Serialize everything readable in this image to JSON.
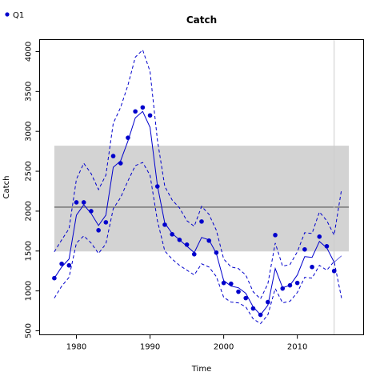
{
  "chart_data": {
    "type": "line",
    "title": "Catch",
    "xlabel": "Time",
    "ylabel": "Catch",
    "xlim": [
      1975,
      2019
    ],
    "ylim": [
      450,
      4150
    ],
    "x_ticks": [
      1980,
      1990,
      2000,
      2010
    ],
    "x_tick_labels": [
      "1980",
      "1990",
      "2000",
      "2010"
    ],
    "y_ticks": [
      500,
      1000,
      1500,
      2000,
      2500,
      3000,
      3500,
      4000
    ],
    "y_tick_labels": [
      "500",
      "1000",
      "1500",
      "2000",
      "2500",
      "3000",
      "3500",
      "4000"
    ],
    "grid": false,
    "legend": {
      "position": "top-left",
      "entries": [
        "Q1"
      ]
    },
    "colors": {
      "series": "#0000cc",
      "band": "#d3d3d3",
      "mean_line": "#555555",
      "marker_line": "#cccccc"
    },
    "reference_band": {
      "x": [
        1977,
        2017
      ],
      "y": [
        1495,
        2820
      ]
    },
    "mean_line": {
      "x": [
        1977,
        2017
      ],
      "y": 2050
    },
    "vertical_marker_x": 2015,
    "observed": {
      "name": "Q1",
      "x": [
        1977,
        1978,
        1979,
        1980,
        1981,
        1982,
        1983,
        1984,
        1985,
        1986,
        1987,
        1988,
        1989,
        1990,
        1991,
        1992,
        1993,
        1994,
        1995,
        1996,
        1997,
        1998,
        1999,
        2000,
        2001,
        2002,
        2003,
        2004,
        2005,
        2006,
        2007,
        2008,
        2009,
        2010,
        2011,
        2012,
        2013,
        2014,
        2015
      ],
      "y": [
        1160,
        1340,
        1320,
        2110,
        2110,
        2000,
        1760,
        1860,
        2690,
        2600,
        2920,
        3250,
        3300,
        3200,
        2310,
        1830,
        1710,
        1640,
        1580,
        1460,
        1870,
        1630,
        1480,
        1100,
        1090,
        990,
        910,
        780,
        700,
        860,
        1700,
        1030,
        1070,
        1100,
        1520,
        1300,
        1680,
        1560,
        1250
      ]
    },
    "fit": {
      "x": [
        1977,
        1978,
        1979,
        1980,
        1981,
        1982,
        1983,
        1984,
        1985,
        1986,
        1987,
        1988,
        1989,
        1990,
        1991,
        1992,
        1993,
        1994,
        1995,
        1996,
        1997,
        1998,
        1999,
        2000,
        2001,
        2002,
        2003,
        2004,
        2005,
        2006,
        2007,
        2008,
        2009,
        2010,
        2011,
        2012,
        2013,
        2014,
        2015
      ],
      "y": [
        1160,
        1300,
        1400,
        1950,
        2080,
        1970,
        1820,
        1950,
        2550,
        2630,
        2880,
        3170,
        3250,
        3050,
        2320,
        1850,
        1720,
        1640,
        1560,
        1480,
        1670,
        1640,
        1470,
        1130,
        1060,
        1040,
        970,
        800,
        700,
        820,
        1280,
        1040,
        1070,
        1200,
        1430,
        1420,
        1620,
        1540,
        1360
      ]
    },
    "upper": {
      "x": [
        1977,
        1978,
        1979,
        1980,
        1981,
        1982,
        1983,
        1984,
        1985,
        1986,
        1987,
        1988,
        1989,
        1990,
        1991,
        1992,
        1993,
        1994,
        1995,
        1996,
        1997,
        1998,
        1999,
        2000,
        2001,
        2002,
        2003,
        2004,
        2005,
        2006,
        2007,
        2008,
        2009,
        2010,
        2011,
        2012,
        2013,
        2014,
        2015,
        2016
      ],
      "y": [
        1490,
        1640,
        1780,
        2400,
        2600,
        2470,
        2270,
        2450,
        3100,
        3300,
        3580,
        3930,
        4020,
        3750,
        2890,
        2310,
        2140,
        2040,
        1880,
        1810,
        2060,
        1960,
        1760,
        1400,
        1300,
        1280,
        1200,
        990,
        900,
        1090,
        1600,
        1310,
        1330,
        1490,
        1730,
        1720,
        1990,
        1880,
        1700,
        2270
      ]
    },
    "lower": {
      "x": [
        1977,
        1978,
        1979,
        1980,
        1981,
        1982,
        1983,
        1984,
        1985,
        1986,
        1987,
        1988,
        1989,
        1990,
        1991,
        1992,
        1993,
        1994,
        1995,
        1996,
        1997,
        1998,
        1999,
        2000,
        2001,
        2002,
        2003,
        2004,
        2005,
        2006,
        2007,
        2008,
        2009,
        2010,
        2011,
        2012,
        2013,
        2014,
        2015,
        2016
      ],
      "y": [
        910,
        1060,
        1170,
        1600,
        1690,
        1600,
        1470,
        1590,
        2030,
        2170,
        2380,
        2570,
        2610,
        2450,
        1880,
        1500,
        1400,
        1320,
        1260,
        1200,
        1340,
        1300,
        1180,
        920,
        860,
        850,
        800,
        650,
        590,
        700,
        1030,
        850,
        870,
        980,
        1170,
        1160,
        1320,
        1260,
        1370,
        910
      ]
    },
    "extension": {
      "x": [
        2015,
        2016
      ],
      "y": [
        1360,
        1440
      ]
    }
  }
}
